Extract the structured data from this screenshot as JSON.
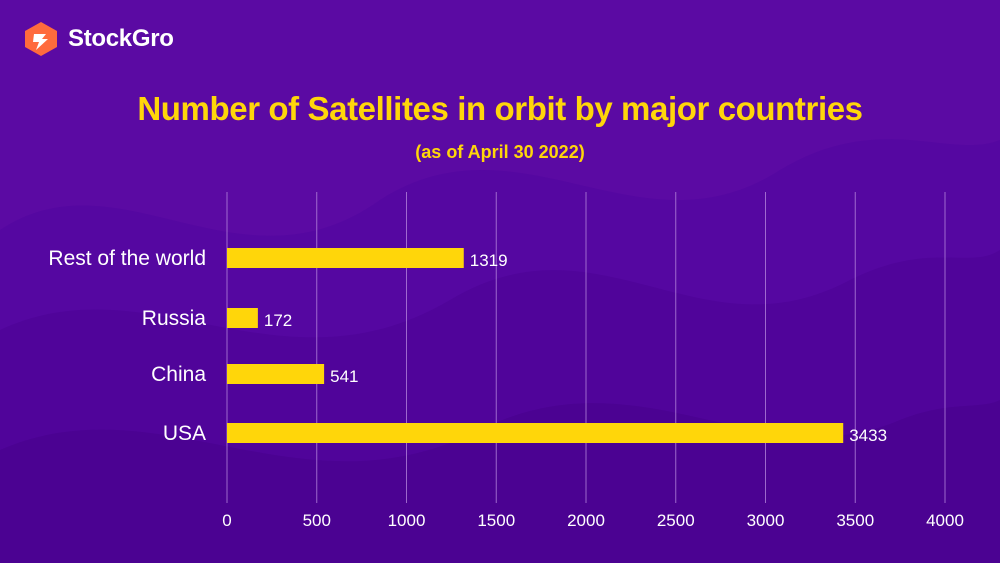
{
  "brand": {
    "name": "StockGro"
  },
  "colors": {
    "background": "#5b0aa3",
    "bar": "#ffd60a",
    "title": "#ffd60a",
    "grid": "#b98ae0",
    "text": "#ffffff",
    "logo": "#ff6b3d"
  },
  "chart_data": {
    "type": "bar",
    "orientation": "horizontal",
    "title": "Number of Satellites in orbit by major countries",
    "subtitle": "(as of April 30 2022)",
    "categories": [
      "Rest of the world",
      "Russia",
      "China",
      "USA"
    ],
    "values": [
      1319,
      172,
      541,
      3433
    ],
    "xlim": [
      0,
      4000
    ],
    "xticks": [
      0,
      500,
      1000,
      1500,
      2000,
      2500,
      3000,
      3500,
      4000
    ],
    "grid": true,
    "xlabel": "",
    "ylabel": ""
  }
}
